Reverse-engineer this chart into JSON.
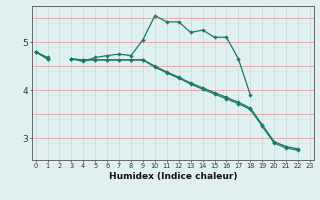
{
  "xlabel": "Humidex (Indice chaleur)",
  "x": [
    0,
    1,
    2,
    3,
    4,
    5,
    6,
    7,
    8,
    9,
    10,
    11,
    12,
    13,
    14,
    15,
    16,
    17,
    18,
    19,
    20,
    21,
    22,
    23
  ],
  "line1": [
    4.8,
    4.68,
    null,
    4.65,
    4.6,
    4.68,
    4.72,
    4.75,
    4.72,
    5.05,
    5.55,
    5.42,
    5.42,
    5.2,
    5.25,
    5.1,
    5.1,
    4.65,
    3.9,
    null,
    null,
    null,
    null,
    null
  ],
  "line2": [
    4.8,
    4.65,
    null,
    4.65,
    4.63,
    4.63,
    4.63,
    4.63,
    4.63,
    4.63,
    4.5,
    4.38,
    4.27,
    4.15,
    4.05,
    3.95,
    3.85,
    3.75,
    3.63,
    3.28,
    2.93,
    2.83,
    2.78,
    null
  ],
  "line3": [
    4.8,
    4.65,
    null,
    4.65,
    4.63,
    4.63,
    4.63,
    4.63,
    4.63,
    4.63,
    4.48,
    4.36,
    4.25,
    4.13,
    4.02,
    3.92,
    3.82,
    3.72,
    3.6,
    3.25,
    2.9,
    2.8,
    2.75,
    null
  ],
  "bg_color": "#dff0f0",
  "grid_color_v": "#c8dede",
  "grid_color_h": "#e8a0a0",
  "line_color": "#1a7a6a",
  "yticks": [
    3,
    4,
    5
  ],
  "xticks": [
    0,
    1,
    2,
    3,
    4,
    5,
    6,
    7,
    8,
    9,
    10,
    11,
    12,
    13,
    14,
    15,
    16,
    17,
    18,
    19,
    20,
    21,
    22,
    23
  ],
  "ylim": [
    2.55,
    5.75
  ],
  "xlim": [
    -0.3,
    23.3
  ]
}
